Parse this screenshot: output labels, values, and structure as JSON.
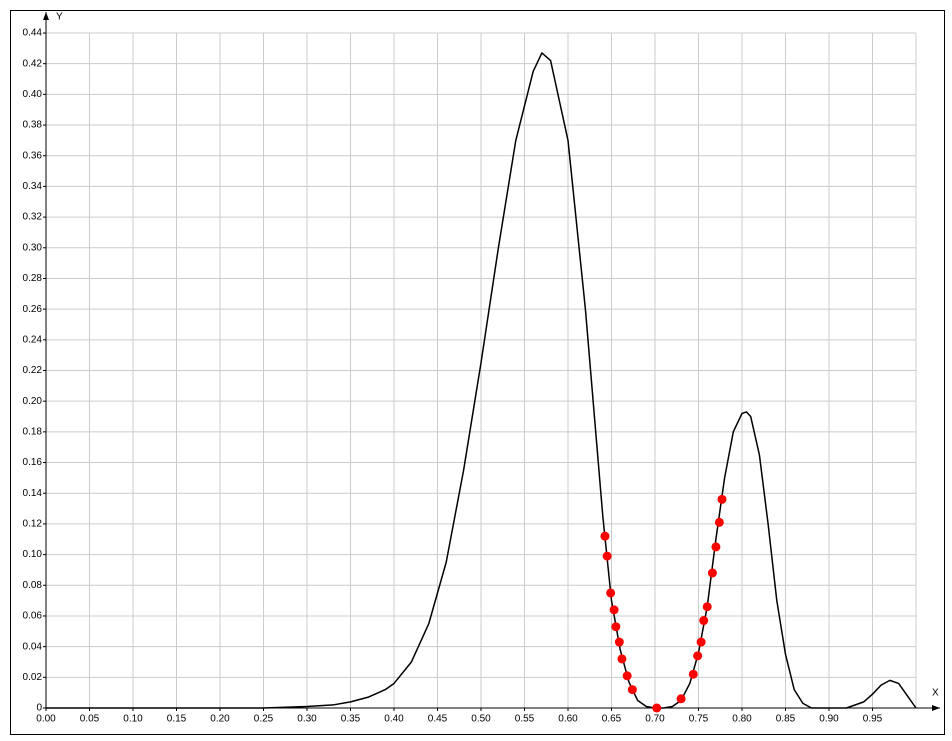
{
  "chart_data": {
    "type": "line",
    "x_label": "X",
    "y_label": "Y",
    "xlim": [
      0,
      1
    ],
    "ylim": [
      0,
      0.44
    ],
    "grid": true,
    "xticks": [
      {
        "value": 0,
        "label": "0.00"
      },
      0.05,
      {
        "value": 0.1,
        "label": "0.10"
      },
      0.15,
      {
        "value": 0.2,
        "label": "0.20"
      },
      0.25,
      {
        "value": 0.3,
        "label": "0.30"
      },
      0.35,
      {
        "value": 0.4,
        "label": "0.40"
      },
      0.45,
      {
        "value": 0.5,
        "label": "0.50"
      },
      0.55,
      {
        "value": 0.6,
        "label": "0.60"
      },
      0.65,
      {
        "value": 0.7,
        "label": "0.70"
      },
      0.75,
      {
        "value": 0.8,
        "label": "0.80"
      },
      0.85,
      {
        "value": 0.9,
        "label": "0.90"
      },
      0.95
    ],
    "yticks": [
      0,
      0.02,
      0.04,
      0.06,
      0.08,
      {
        "value": 0.1,
        "label": "0.10"
      },
      0.12,
      0.14,
      0.16,
      0.18,
      {
        "value": 0.2,
        "label": "0.20"
      },
      0.22,
      0.24,
      0.26,
      0.28,
      {
        "value": 0.3,
        "label": "0.30"
      },
      0.32,
      0.34,
      0.36,
      0.38,
      {
        "value": 0.4,
        "label": "0.40"
      },
      0.42,
      0.44
    ],
    "series": [
      {
        "type": "line",
        "color": "#000000",
        "x": [
          0,
          0.25,
          0.3,
          0.33,
          0.35,
          0.37,
          0.39,
          0.4,
          0.42,
          0.44,
          0.46,
          0.48,
          0.5,
          0.52,
          0.54,
          0.56,
          0.57,
          0.58,
          0.6,
          0.62,
          0.64,
          0.65,
          0.66,
          0.67,
          0.68,
          0.69,
          0.7,
          0.71,
          0.72,
          0.73,
          0.74,
          0.75,
          0.76,
          0.77,
          0.78,
          0.79,
          0.8,
          0.805,
          0.81,
          0.82,
          0.83,
          0.84,
          0.85,
          0.86,
          0.87,
          0.88,
          0.9,
          0.92,
          0.94,
          0.95,
          0.96,
          0.97,
          0.98,
          0.99,
          1
        ],
        "values": [
          0,
          0,
          0.001,
          0.002,
          0.004,
          0.007,
          0.012,
          0.016,
          0.03,
          0.055,
          0.095,
          0.155,
          0.225,
          0.3,
          0.37,
          0.415,
          0.427,
          0.422,
          0.37,
          0.26,
          0.125,
          0.07,
          0.038,
          0.017,
          0.005,
          0.001,
          0,
          0,
          0.001,
          0.005,
          0.016,
          0.036,
          0.066,
          0.11,
          0.15,
          0.18,
          0.192,
          0.193,
          0.19,
          0.165,
          0.12,
          0.07,
          0.035,
          0.012,
          0.003,
          0,
          0,
          0,
          0.004,
          0.009,
          0.015,
          0.018,
          0.016,
          0.008,
          0
        ]
      },
      {
        "type": "scatter",
        "color": "#ff0000",
        "x": [
          0.6425,
          0.645,
          0.649,
          0.653,
          0.655,
          0.659,
          0.662,
          0.668,
          0.674,
          0.702,
          0.73,
          0.744,
          0.749,
          0.753,
          0.756,
          0.76,
          0.766,
          0.77,
          0.774,
          0.777
        ],
        "values": [
          0.112,
          0.099,
          0.075,
          0.064,
          0.053,
          0.043,
          0.032,
          0.021,
          0.012,
          0,
          0.006,
          0.022,
          0.034,
          0.043,
          0.057,
          0.066,
          0.088,
          0.105,
          0.121,
          0.136
        ]
      }
    ]
  }
}
